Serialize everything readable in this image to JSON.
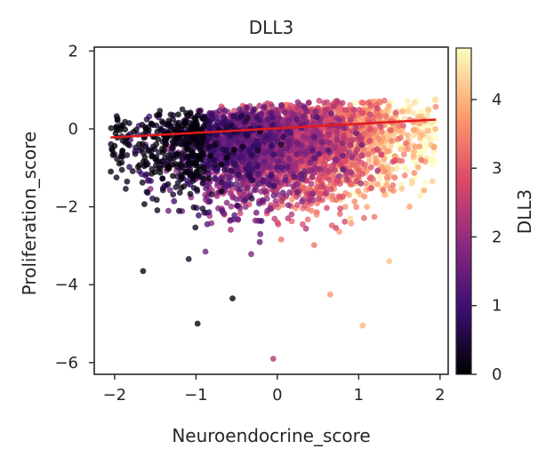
{
  "chart_data": {
    "type": "scatter",
    "title": "DLL3",
    "xlabel": "Neuroendocrine_score",
    "ylabel": "Proliferation_score",
    "xlim": [
      -2.25,
      2.1
    ],
    "ylim": [
      -6.3,
      2.1
    ],
    "xticks": [
      -2,
      -1,
      0,
      1,
      2
    ],
    "yticks": [
      2,
      0,
      -2,
      -4,
      -6
    ],
    "grid": false,
    "legend": "none",
    "colorbar": {
      "label": "DLL3",
      "range": [
        0,
        4.75
      ],
      "ticks": [
        0,
        1,
        2,
        3,
        4
      ],
      "colormap": "magma",
      "stops": [
        "#000004",
        "#3b0f70",
        "#8c2981",
        "#de4968",
        "#fe9f6d",
        "#fcfdbf"
      ]
    },
    "regression_line": {
      "color": "#e31a1c",
      "x": [
        -2.05,
        1.95
      ],
      "y": [
        -0.22,
        0.24
      ]
    },
    "scatter_summary": {
      "n_points_estimate": 4000,
      "correlation_color_vs_x": "positive",
      "outliers": [
        {
          "x": -0.98,
          "y": -5.0,
          "value": 0.0
        },
        {
          "x": -0.05,
          "y": -5.9,
          "value": 2.3
        },
        {
          "x": 1.05,
          "y": -5.05,
          "value": 4.0
        },
        {
          "x": 0.65,
          "y": -4.25,
          "value": 3.7
        },
        {
          "x": -0.55,
          "y": -4.35,
          "value": 0.0
        },
        {
          "x": -1.65,
          "y": -3.65,
          "value": 0.0
        }
      ]
    }
  }
}
